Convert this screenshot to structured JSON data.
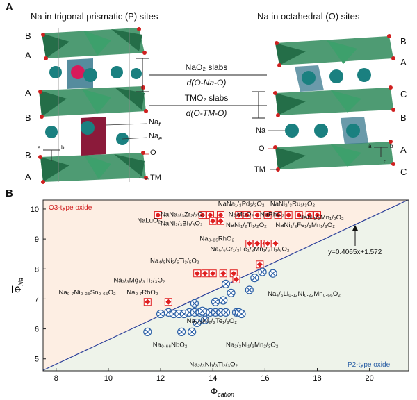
{
  "panel_a": {
    "label": "A",
    "left_title": "Na in trigonal prismatic (P) sites",
    "right_title": "Na in octahedral (O) sites",
    "left_layers": [
      "B",
      "A",
      "A",
      "B",
      "B",
      "A"
    ],
    "right_layers": [
      "B",
      "A",
      "C",
      "B",
      "A",
      "C"
    ],
    "slab1": "NaO₂ slabs",
    "slab1_d": "d(O-Na-O)",
    "slab2": "TMO₂ slabs",
    "slab2_d": "d(O-TM-O)",
    "left_atoms": {
      "naf": "Na",
      "naf_sub": "f",
      "nae": "Na",
      "nae_sub": "e",
      "o": "O",
      "tm": "TM"
    },
    "right_atoms": {
      "na": "Na",
      "o": "O",
      "tm": "TM"
    },
    "axis_letters": {
      "a": "a",
      "b": "b",
      "c": "c"
    },
    "colors": {
      "polyhedra": "#2f8a5a",
      "prism": "#8b1a3a",
      "na_atom": "#1a8080",
      "o_atom": "#d02020"
    }
  },
  "panel_b": {
    "label": "B",
    "o3_region_label": "O3-type oxide",
    "p2_region_label": "P2-type oxide",
    "fit_label": "y=0.4065x+1.572",
    "colors": {
      "o3_region": "#fdeee3",
      "p2_region": "#eef3ea",
      "o3_marker": "#e02020",
      "p2_marker": "#2a5fa5",
      "fit_line": "#2a3f9a"
    }
  },
  "chart_data": {
    "type": "scatter",
    "xlabel": "Φcation",
    "ylabel": "ΦNa (overlined)",
    "xlim": [
      7.5,
      21.5
    ],
    "ylim": [
      4.6,
      10.3
    ],
    "xticks": [
      8,
      10,
      12,
      14,
      16,
      18,
      20
    ],
    "yticks": [
      5,
      6,
      7,
      8,
      9,
      10
    ],
    "fit": {
      "slope": 0.4065,
      "intercept": 1.572
    },
    "series": [
      {
        "name": "O3-type oxide",
        "points": [
          [
            11.5,
            6.9
          ],
          [
            12.3,
            6.9
          ],
          [
            11.9,
            9.8
          ],
          [
            13.6,
            9.8
          ],
          [
            13.9,
            9.8
          ],
          [
            14.3,
            9.8
          ],
          [
            15.0,
            9.8
          ],
          [
            15.3,
            9.8
          ],
          [
            15.7,
            9.8
          ],
          [
            16.1,
            9.8
          ],
          [
            16.5,
            9.8
          ],
          [
            16.9,
            9.8
          ],
          [
            17.3,
            9.8
          ],
          [
            17.7,
            9.8
          ],
          [
            18.0,
            9.8
          ],
          [
            14.0,
            9.6
          ],
          [
            14.3,
            9.6
          ],
          [
            15.4,
            8.85
          ],
          [
            15.7,
            8.85
          ],
          [
            16.0,
            8.85
          ],
          [
            16.4,
            8.85
          ],
          [
            16.1,
            8.85
          ],
          [
            15.8,
            8.15
          ],
          [
            13.4,
            7.85
          ],
          [
            13.7,
            7.85
          ],
          [
            14.0,
            7.85
          ],
          [
            14.4,
            7.85
          ],
          [
            14.8,
            7.85
          ],
          [
            14.9,
            7.65
          ]
        ]
      },
      {
        "name": "P2-type oxide",
        "points": [
          [
            11.5,
            5.9
          ],
          [
            12.0,
            6.5
          ],
          [
            12.3,
            6.55
          ],
          [
            12.5,
            6.5
          ],
          [
            12.7,
            6.5
          ],
          [
            12.9,
            6.5
          ],
          [
            13.1,
            6.55
          ],
          [
            13.3,
            6.55
          ],
          [
            13.5,
            6.55
          ],
          [
            13.7,
            6.55
          ],
          [
            13.9,
            6.55
          ],
          [
            14.1,
            6.55
          ],
          [
            14.3,
            6.55
          ],
          [
            14.5,
            6.55
          ],
          [
            14.9,
            6.55
          ],
          [
            15.0,
            6.55
          ],
          [
            12.8,
            5.9
          ],
          [
            13.2,
            5.9
          ],
          [
            13.4,
            6.2
          ],
          [
            13.7,
            6.3
          ],
          [
            13.3,
            6.85
          ],
          [
            14.1,
            6.9
          ],
          [
            14.4,
            6.95
          ],
          [
            14.7,
            7.2
          ],
          [
            14.5,
            7.5
          ],
          [
            15.4,
            7.3
          ],
          [
            15.6,
            7.7
          ],
          [
            15.9,
            7.9
          ],
          [
            16.3,
            7.85
          ],
          [
            15.1,
            6.5
          ],
          [
            13.6,
            6.6
          ]
        ]
      }
    ],
    "annotations": [
      {
        "text": "NaLuO₂",
        "x": 11.1,
        "y": 9.55
      },
      {
        "text": "NaNa₁/₃Zr₂/₃O₂",
        "x": 12.0,
        "y": 9.75
      },
      {
        "text": "NaNi₂/₃Bi₁/₃O₂",
        "x": 12.0,
        "y": 9.45
      },
      {
        "text": "NaNa₁/₃Pd₂/₃O₂",
        "x": 14.2,
        "y": 10.1
      },
      {
        "text": "NaNi₂/₃Ru₁/₃O₂",
        "x": 16.2,
        "y": 10.1
      },
      {
        "text": "NaMoO₂",
        "x": 14.6,
        "y": 9.75
      },
      {
        "text": "NaRhO₂",
        "x": 15.8,
        "y": 9.75
      },
      {
        "text": "NaNi₁/₂Mn₁/₂O₂",
        "x": 17.3,
        "y": 9.65
      },
      {
        "text": "NaNi₁/₂Ti₁/₂O₂",
        "x": 14.5,
        "y": 9.4
      },
      {
        "text": "NaNi₁/₃Fe₁/₃Mn₁/₃O₂",
        "x": 16.4,
        "y": 9.4
      },
      {
        "text": "Na₀.₈₅RhO₂",
        "x": 13.5,
        "y": 8.95
      },
      {
        "text": "Na₅/₆Cr₁/₃Fe₁/₃Mn₁/₆Ti₁/₆O₂",
        "x": 13.9,
        "y": 8.6
      },
      {
        "text": "Na₄/₅Ni₂/₅Ti₃/₅O₂",
        "x": 11.6,
        "y": 8.2
      },
      {
        "text": "Na₂/₃Mg₁/₃Ti₂/₃O₂",
        "x": 10.2,
        "y": 7.55
      },
      {
        "text": "Na₀.₇Ni₀.₃₅Sn₀.₆₅O₂",
        "x": 8.1,
        "y": 7.15
      },
      {
        "text": "Na₀.₇RhO₂",
        "x": 10.7,
        "y": 7.15
      },
      {
        "text": "Na₄/₅Li₀.₁₂Ni₀.₂₂Mn₀.₆₆O₂",
        "x": 16.1,
        "y": 7.1
      },
      {
        "text": "Na₂/₃Ni₂/₃Te₁/₃O₂",
        "x": 13.0,
        "y": 6.2
      },
      {
        "text": "Na₀.₆₆NbO₂",
        "x": 11.7,
        "y": 5.4
      },
      {
        "text": "Na₂/₃Ni₁/₃Mn₂/₃O₂",
        "x": 14.5,
        "y": 5.4
      },
      {
        "text": "Na₂/₃Ni₁/₃Ti₂/₃O₂",
        "x": 13.1,
        "y": 4.75
      }
    ]
  }
}
